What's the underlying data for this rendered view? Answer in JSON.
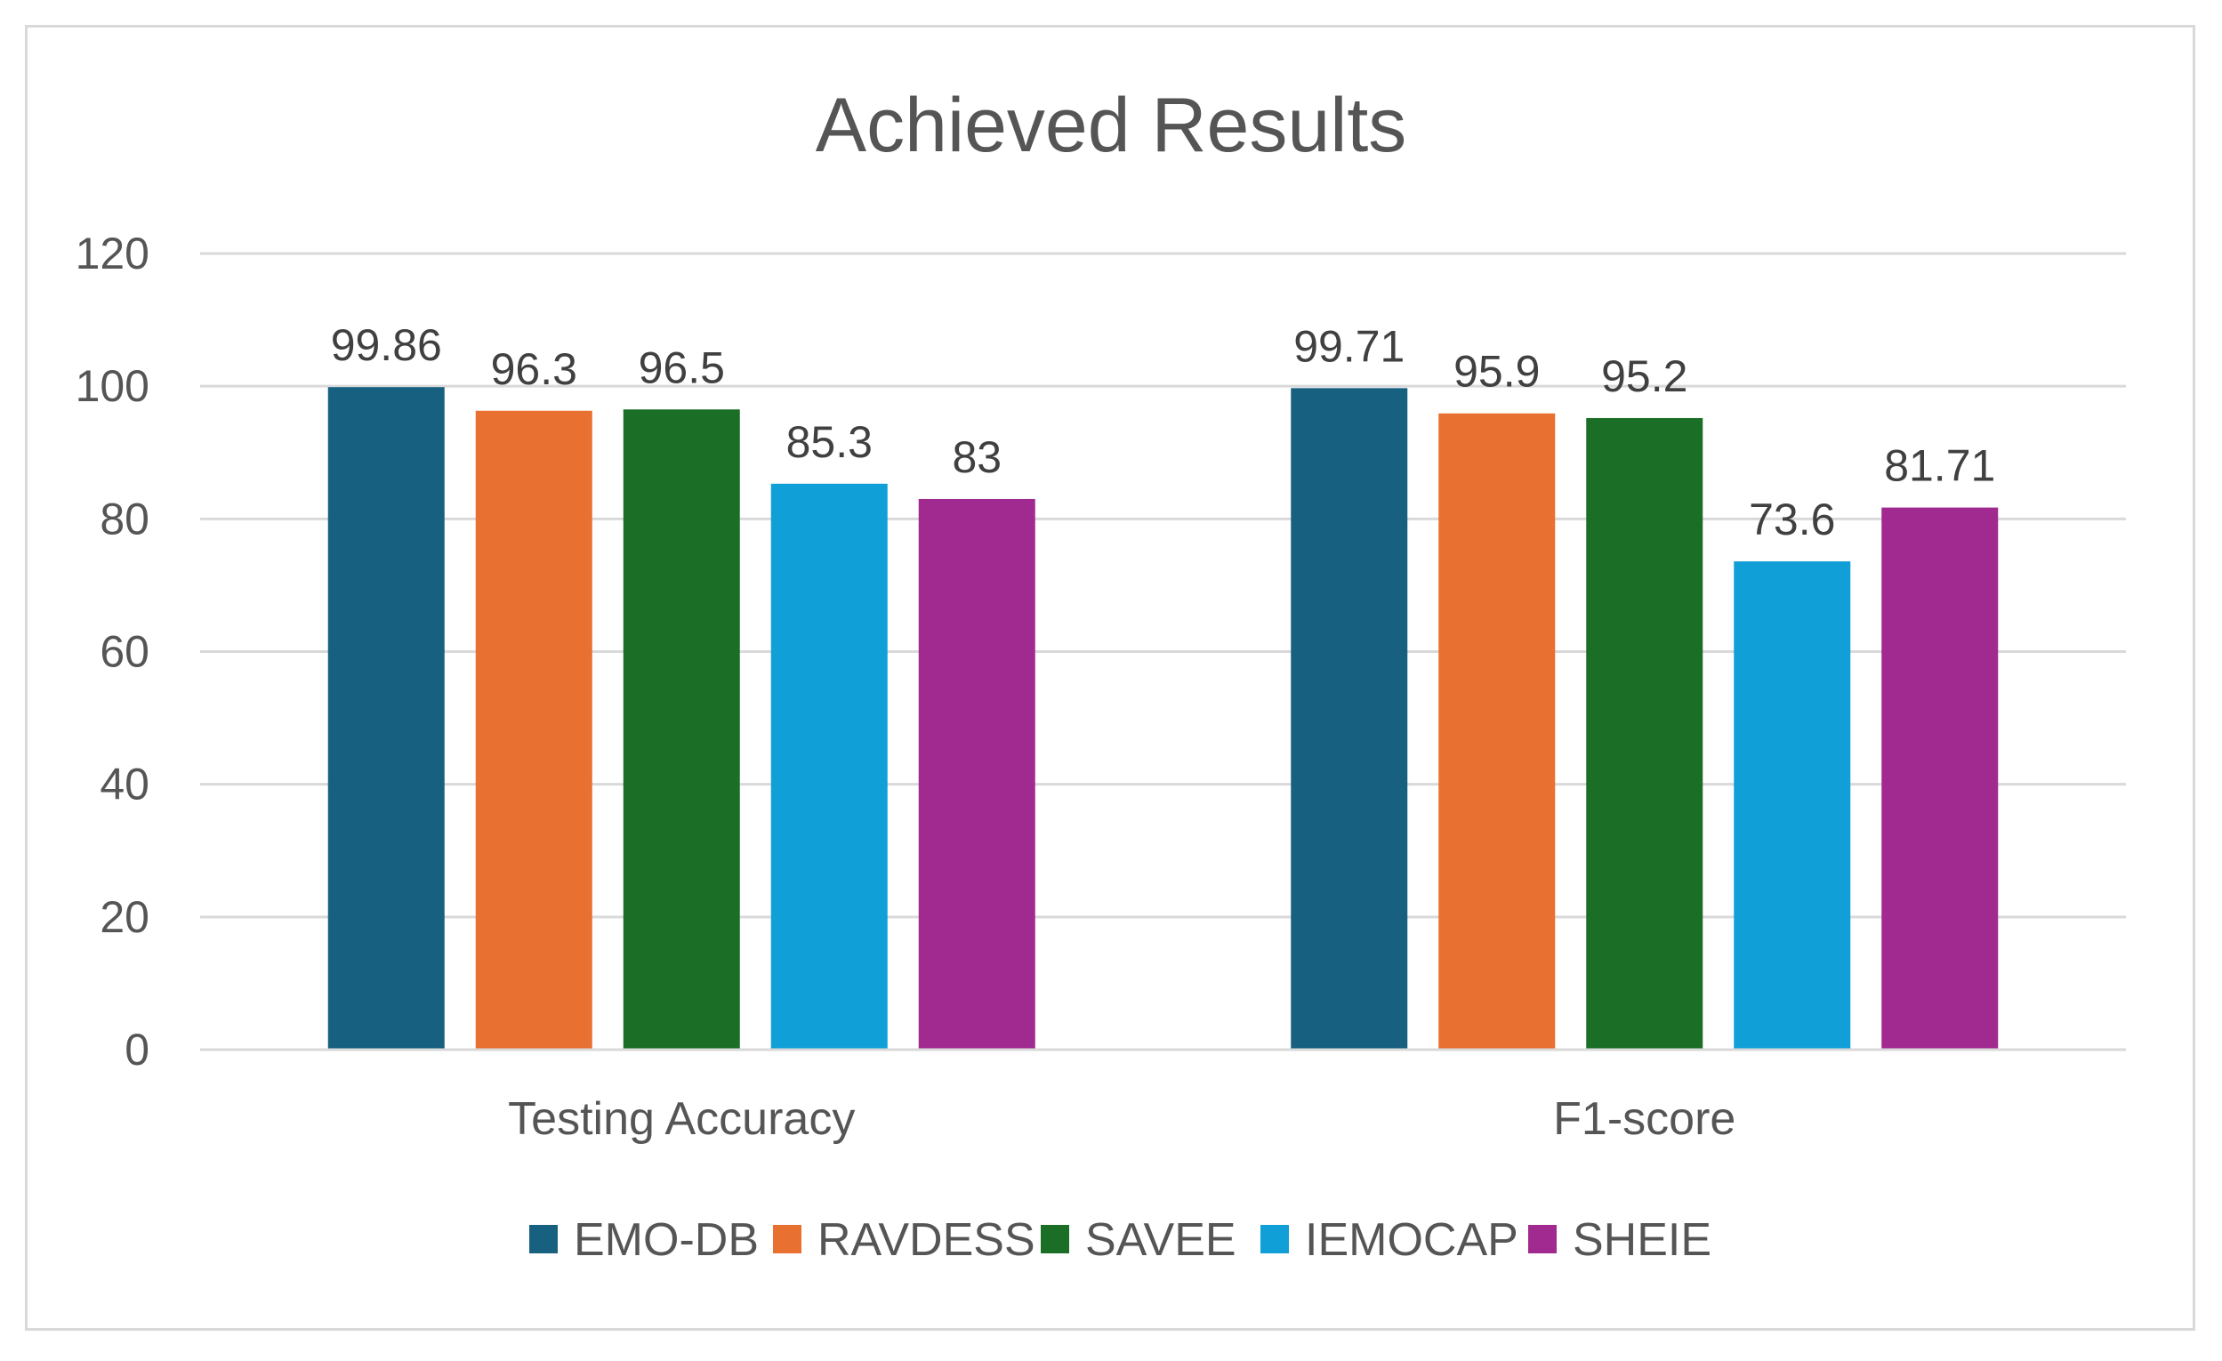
{
  "chart_data": {
    "type": "bar",
    "title": "Achieved Results",
    "categories": [
      "Testing Accuracy",
      "F1-score"
    ],
    "series": [
      {
        "name": "EMO-DB",
        "color": "#17607f",
        "values": [
          99.86,
          99.71
        ],
        "labels": [
          "99.86",
          "99.71"
        ]
      },
      {
        "name": "RAVDESS",
        "color": "#e87030",
        "values": [
          96.3,
          95.9
        ],
        "labels": [
          "96.3",
          "95.9"
        ]
      },
      {
        "name": "SAVEE",
        "color": "#1b6e26",
        "values": [
          96.5,
          95.2
        ],
        "labels": [
          "96.5",
          "95.2"
        ]
      },
      {
        "name": "IEMOCAP",
        "color": "#119fd8",
        "values": [
          85.3,
          73.6
        ],
        "labels": [
          "85.3",
          "73.6"
        ]
      },
      {
        "name": "SHEIE",
        "color": "#a02a8f",
        "values": [
          83,
          81.71
        ],
        "labels": [
          "83",
          "81.71"
        ]
      }
    ],
    "ylim": [
      0,
      120
    ],
    "yticks": [
      "0",
      "20",
      "40",
      "60",
      "80",
      "100",
      "120"
    ],
    "grid": true,
    "legend_position": "bottom"
  }
}
